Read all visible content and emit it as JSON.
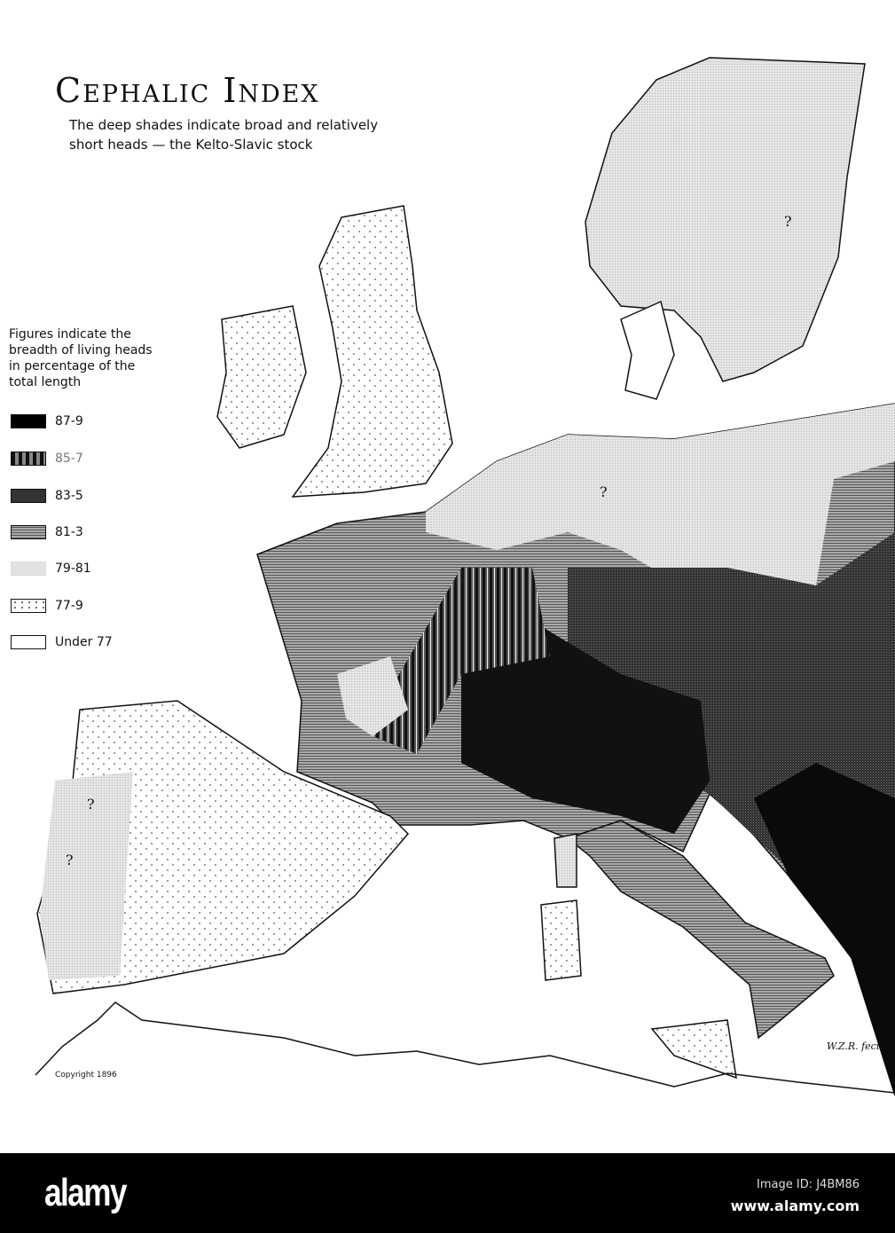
{
  "title": "Cephalic Index",
  "subtitle": "The deep shades indicate broad and relatively short heads — the Kelto-Slavic stock",
  "legend": {
    "heading": "Figures indicate the breadth of living heads in percentage of the total length",
    "items": [
      {
        "label": "87-9",
        "pattern": "solid-black"
      },
      {
        "label": "85-7",
        "pattern": "vertical-stripes"
      },
      {
        "label": "83-5",
        "pattern": "dense-dark-grid"
      },
      {
        "label": "81-3",
        "pattern": "horizontal-lines"
      },
      {
        "label": "79-81",
        "pattern": "light-stipple"
      },
      {
        "label": "77-9",
        "pattern": "dots"
      },
      {
        "label": "Under 77",
        "pattern": "white"
      }
    ]
  },
  "markers": {
    "unknown": "?"
  },
  "copyright": "Copyright 1896",
  "signature": "W.Z.R. fecit.",
  "watermark": {
    "logo": "alamy",
    "image_id": "Image ID: J4BM86",
    "site": "www.alamy.com"
  }
}
